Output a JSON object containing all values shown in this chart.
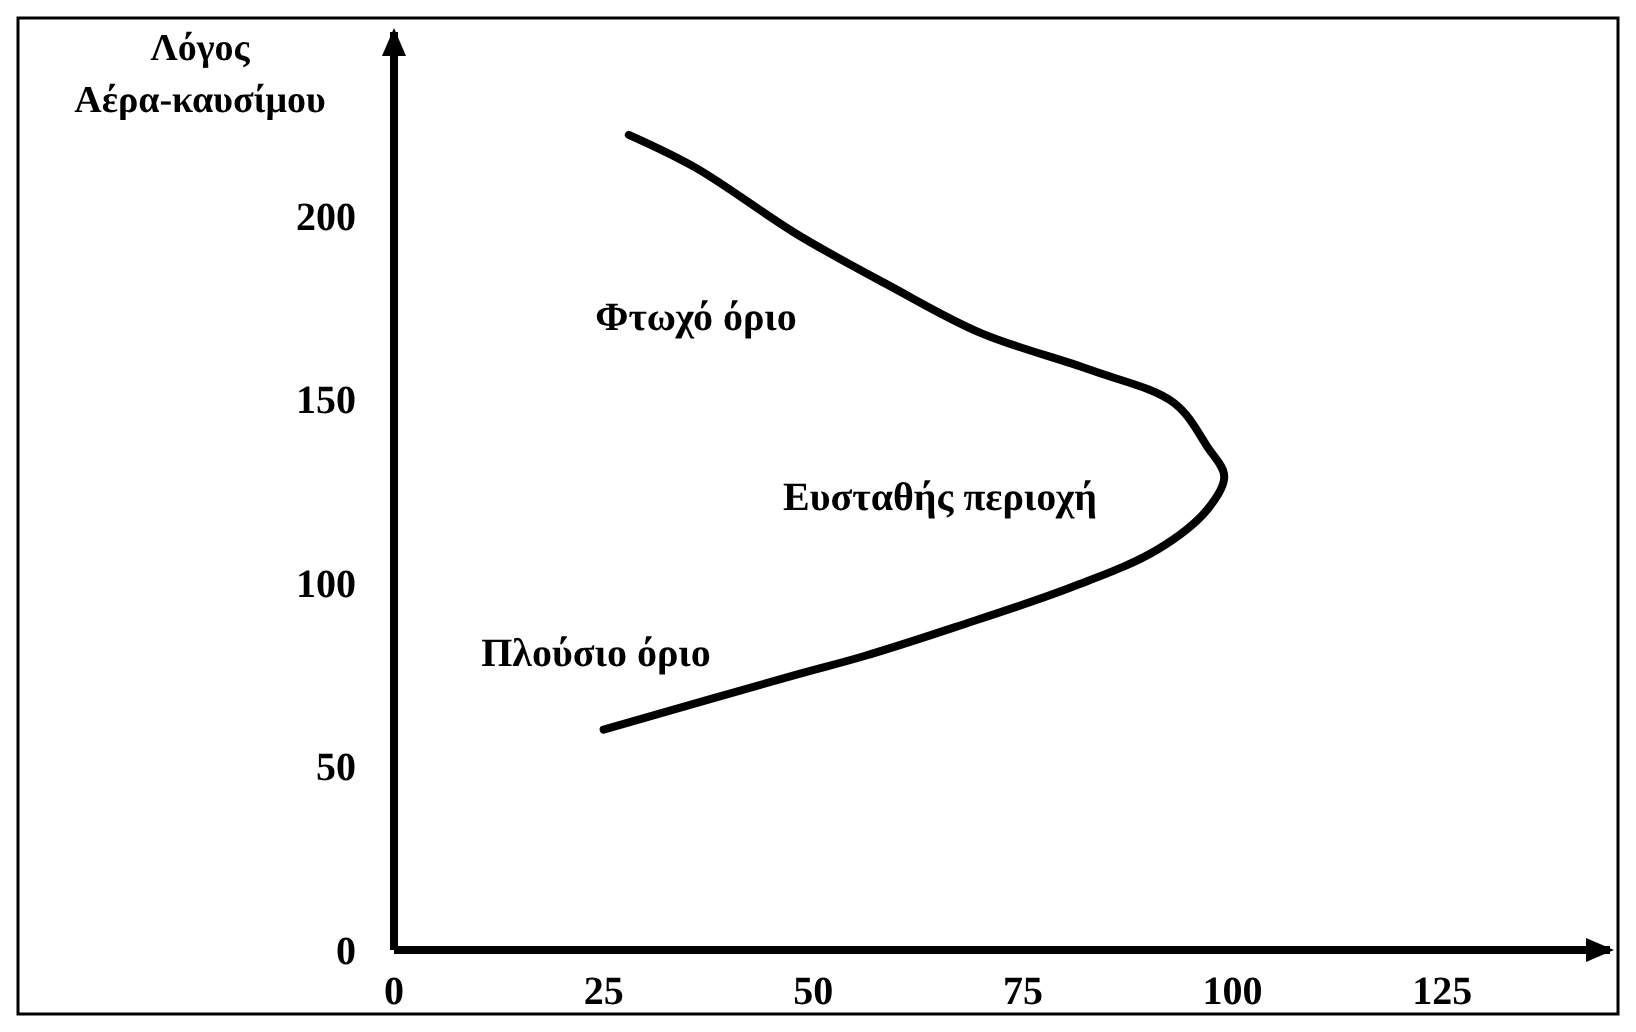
{
  "chart_data": {
    "type": "line",
    "ylabel": "Λόγος\nΑέρα-καυσίμου",
    "xlim": [
      0,
      145
    ],
    "ylim": [
      0,
      250
    ],
    "xticks": [
      0,
      25,
      50,
      75,
      100,
      125
    ],
    "yticks": [
      0,
      50,
      100,
      150,
      200
    ],
    "grid": false,
    "marker": "none",
    "line_style": "solid",
    "series": [
      {
        "color": "#000000",
        "x": [
          28,
          36,
          48,
          59,
          70,
          83,
          93,
          97,
          99,
          97,
          91,
          81,
          67,
          56,
          48,
          25
        ],
        "values": [
          222,
          213,
          195,
          181,
          168,
          158,
          149,
          137,
          129,
          120,
          109,
          99,
          88,
          80,
          75,
          60
        ]
      }
    ],
    "annotations": [
      "Φτωχό όριο",
      "Ευσταθής περιοχή",
      "Πλούσιο όριο"
    ]
  }
}
